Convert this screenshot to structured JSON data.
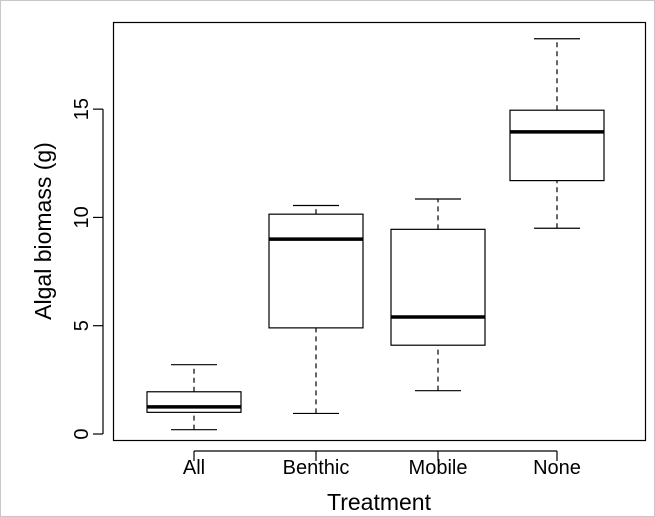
{
  "chart_data": {
    "type": "boxplot",
    "xlabel": "Treatment",
    "ylabel": "Algal biomass (g)",
    "ylim": [
      -0.3,
      19.0
    ],
    "yticks": [
      0,
      5,
      10,
      15
    ],
    "grid": false,
    "categories": [
      "All",
      "Benthic",
      "Mobile",
      "None"
    ],
    "boxes": [
      {
        "category": "All",
        "whisker_low": 0.2,
        "q1": 1.0,
        "median": 1.25,
        "q3": 1.95,
        "whisker_high": 3.2
      },
      {
        "category": "Benthic",
        "whisker_low": 0.95,
        "q1": 4.9,
        "median": 9.0,
        "q3": 10.15,
        "whisker_high": 10.55
      },
      {
        "category": "Mobile",
        "whisker_low": 2.0,
        "q1": 4.1,
        "median": 5.4,
        "q3": 9.45,
        "whisker_high": 10.85
      },
      {
        "category": "None",
        "whisker_low": 9.5,
        "q1": 11.7,
        "median": 13.95,
        "q3": 14.95,
        "whisker_high": 18.25
      }
    ]
  }
}
